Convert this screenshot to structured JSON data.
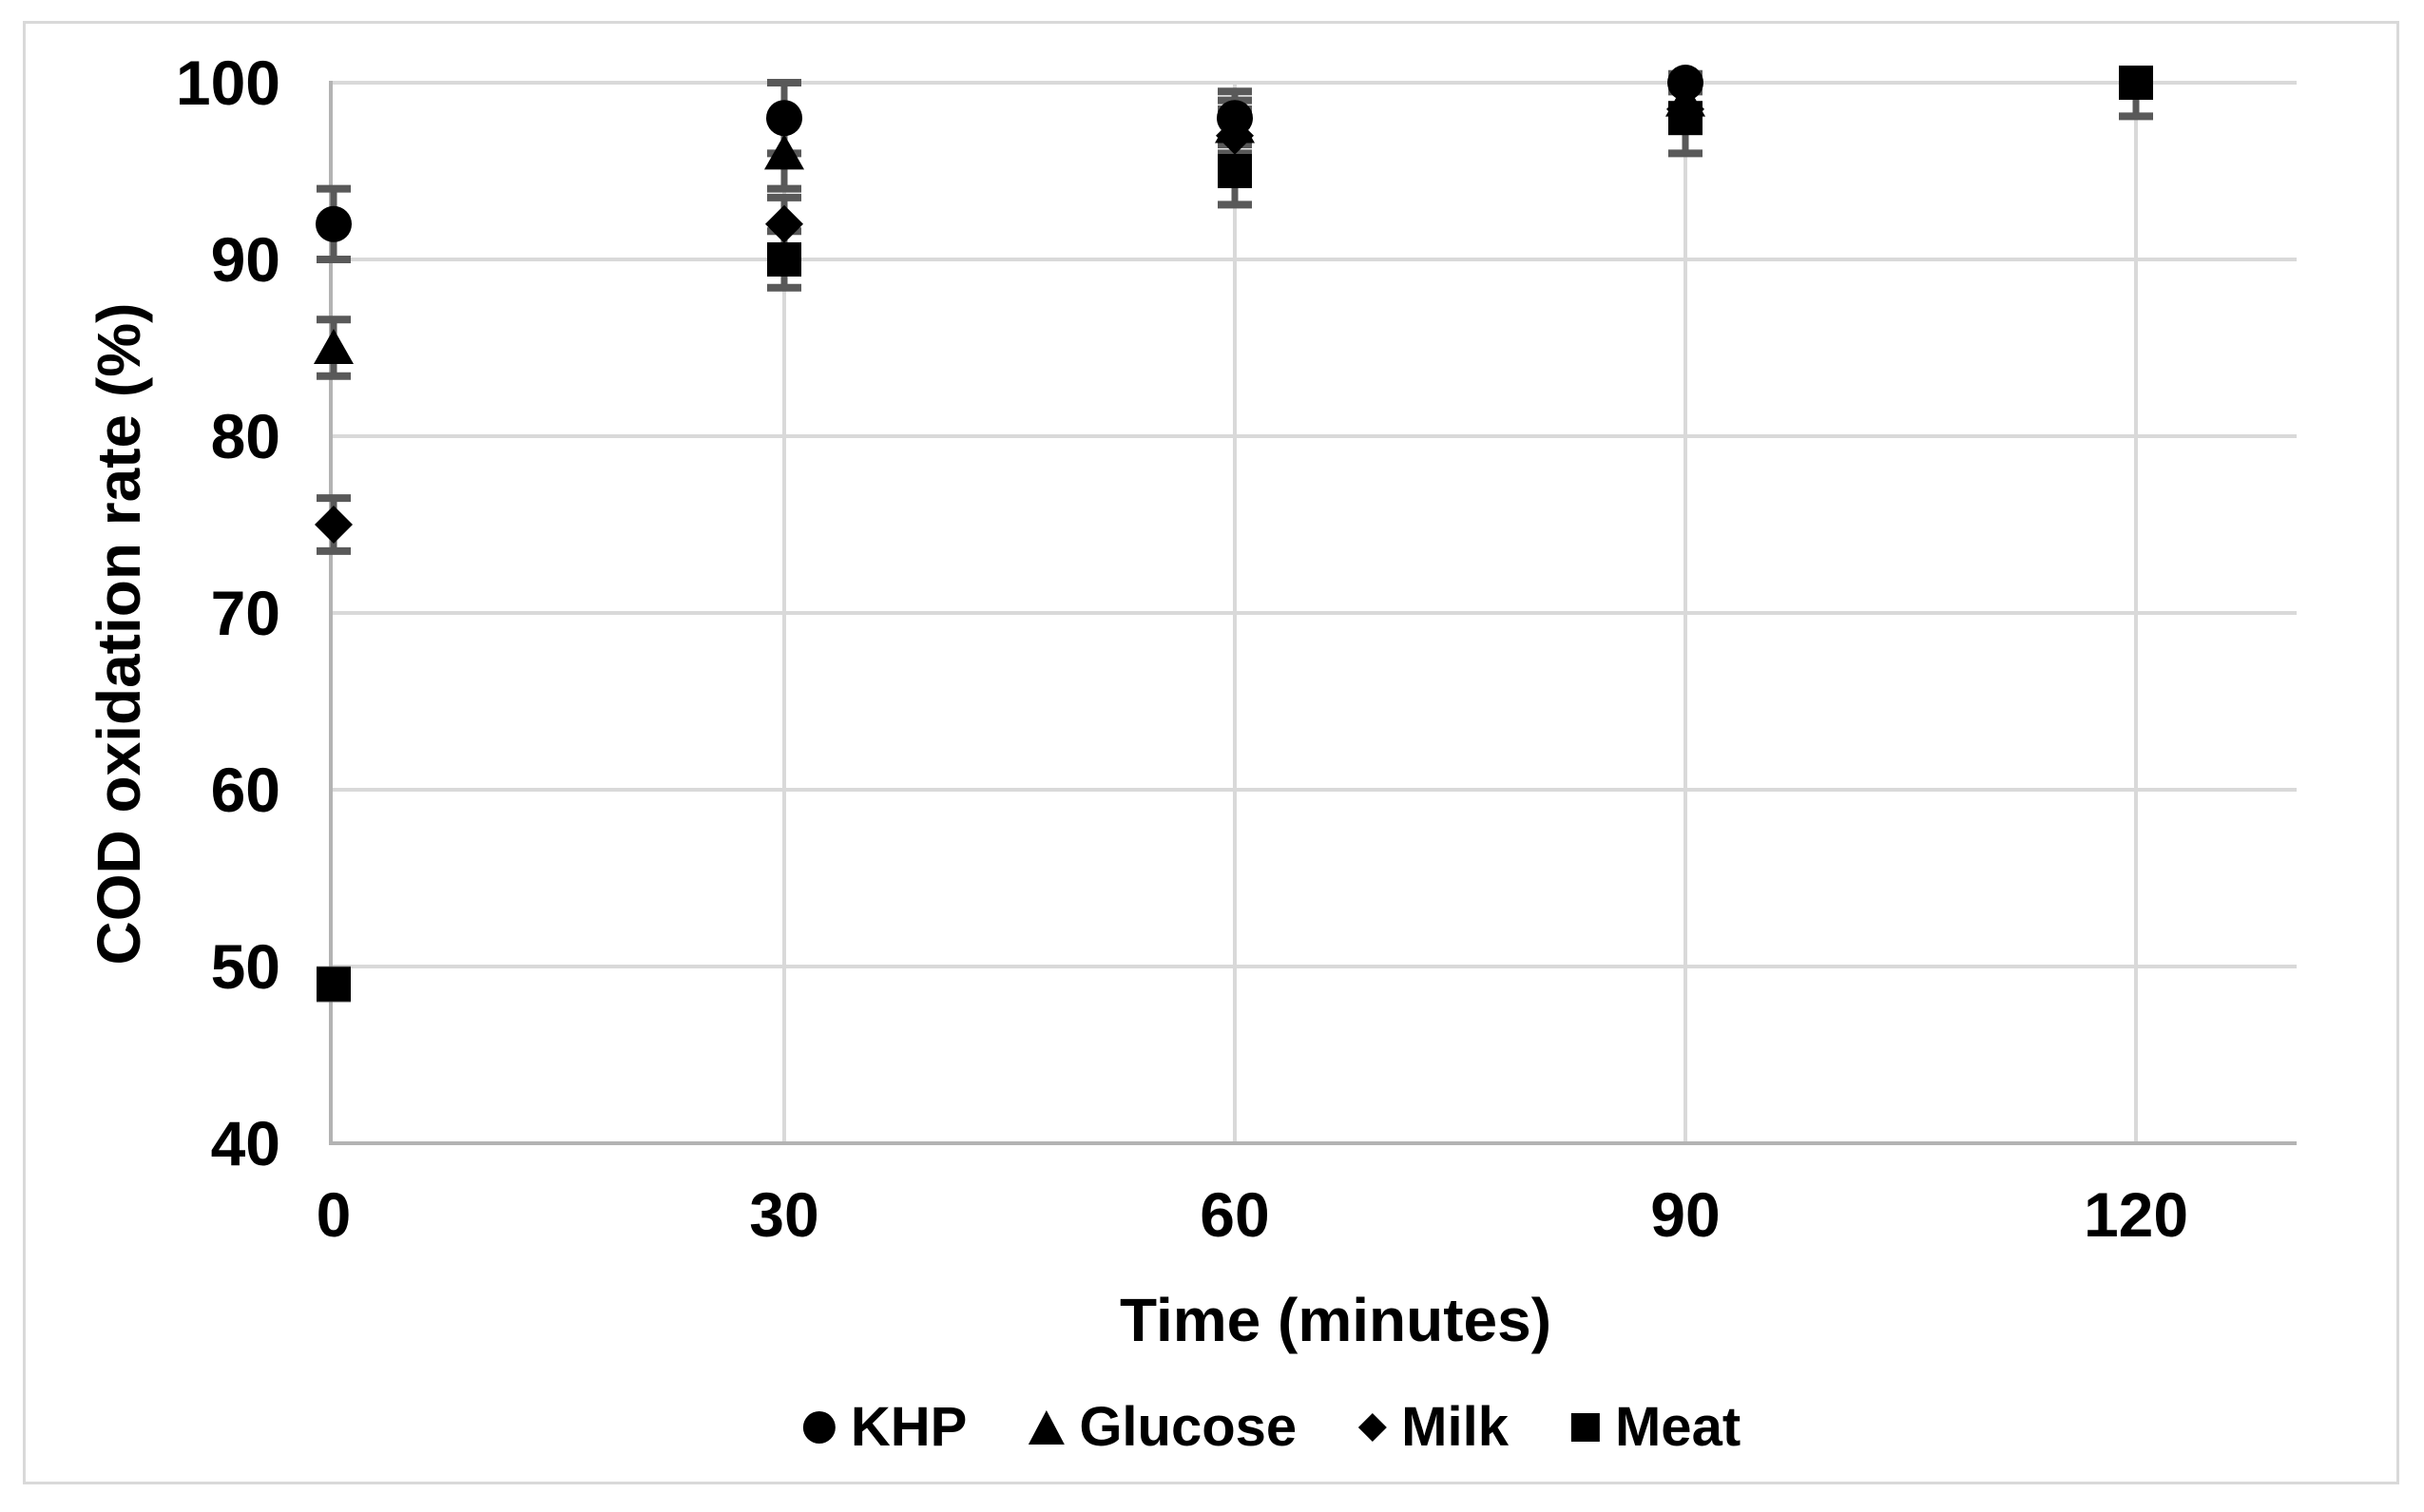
{
  "figure": {
    "background": "#ffffff",
    "border_color": "#d9d9d9"
  },
  "chart_data": {
    "type": "scatter",
    "title": "",
    "xlabel": "Time (minutes)",
    "ylabel": "COD oxidation rate (%)",
    "x_ticks": [
      0,
      30,
      60,
      90,
      120
    ],
    "y_ticks": [
      40,
      50,
      60,
      70,
      80,
      90,
      100
    ],
    "xlim": [
      0,
      131
    ],
    "ylim": [
      40,
      100
    ],
    "grid": "both",
    "legend_position": "bottom",
    "colors": {
      "marker": "#000000",
      "error_bar": "#595959",
      "gridline": "#d9d9d9",
      "axis_line": "#b3b3b3",
      "text": "#000000"
    },
    "series": [
      {
        "name": "KHP",
        "marker": "circle",
        "x": [
          0,
          30,
          60,
          90
        ],
        "y": [
          92,
          98,
          98,
          100
        ],
        "err_minus": [
          2,
          2,
          1.5,
          0.5
        ],
        "err_plus": [
          2,
          2,
          1.5,
          0.5
        ]
      },
      {
        "name": "Glucose",
        "marker": "triangle",
        "x": [
          0,
          30,
          60,
          90
        ],
        "y": [
          85,
          96,
          97.5,
          99
        ],
        "err_minus": [
          1.6,
          2,
          1.5,
          1
        ],
        "err_plus": [
          1.6,
          2,
          1.5,
          1
        ]
      },
      {
        "name": "Milk",
        "marker": "diamond",
        "x": [
          0,
          30,
          60,
          90
        ],
        "y": [
          75,
          92,
          97,
          98.5
        ],
        "err_minus": [
          1.5,
          1.5,
          1.5,
          1
        ],
        "err_plus": [
          1.5,
          1.5,
          1.5,
          1
        ]
      },
      {
        "name": "Meat",
        "marker": "square",
        "x": [
          0,
          30,
          60,
          90,
          120
        ],
        "y": [
          49,
          90,
          95,
          98,
          100
        ],
        "err_minus": [
          0.8,
          1.6,
          1.9,
          2,
          1.9
        ],
        "err_plus": [
          0.8,
          1.6,
          1.9,
          2,
          0
        ]
      }
    ]
  }
}
